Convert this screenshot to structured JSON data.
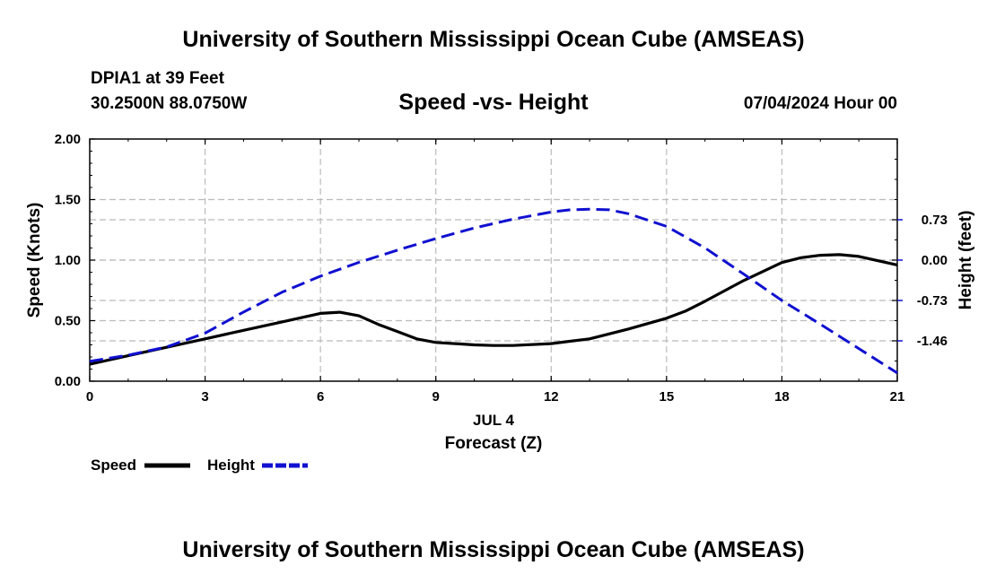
{
  "header": {
    "title": "University of Southern Mississippi Ocean Cube (AMSEAS)",
    "station": "DPIA1 at 39 Feet",
    "coords": "30.2500N  88.0750W",
    "run_time": "07/04/2024 Hour 00"
  },
  "footer": {
    "title": "University of Southern Mississippi Ocean Cube (AMSEAS)"
  },
  "chart_data": {
    "type": "line",
    "title": "Speed -vs- Height",
    "xlabel": "Forecast (Z)",
    "date_label": "JUL 4",
    "ylabel": "Speed (Knots)",
    "y2label": "Height (feet)",
    "xlim": [
      0,
      21
    ],
    "ylim": [
      0,
      2
    ],
    "y2lim": [
      -2.19,
      2.19
    ],
    "x_ticks": [
      "0",
      "3",
      "6",
      "9",
      "12",
      "15",
      "18",
      "21"
    ],
    "y_ticks": [
      "0.00",
      "0.50",
      "1.00",
      "1.50",
      "2.00"
    ],
    "y2_ticks": [
      "-1.46",
      "-0.73",
      "0.00",
      "0.73"
    ],
    "grid": true,
    "legend": [
      {
        "name": "Speed",
        "color": "#000000",
        "style": "solid"
      },
      {
        "name": "Height",
        "color": "#1010d0",
        "style": "dashed"
      }
    ],
    "series": [
      {
        "name": "Speed",
        "axis": "left",
        "color": "#000000",
        "x": [
          0,
          1,
          2,
          3,
          4,
          5,
          6,
          6.5,
          7,
          7.5,
          8,
          8.5,
          9,
          9.5,
          10,
          10.5,
          11,
          12,
          13,
          14,
          15,
          15.5,
          16,
          17,
          18,
          18.5,
          19,
          19.5,
          20,
          21
        ],
        "values": [
          0.14,
          0.21,
          0.28,
          0.35,
          0.42,
          0.49,
          0.56,
          0.57,
          0.54,
          0.47,
          0.41,
          0.35,
          0.32,
          0.31,
          0.3,
          0.295,
          0.295,
          0.31,
          0.35,
          0.43,
          0.52,
          0.58,
          0.66,
          0.83,
          0.98,
          1.02,
          1.04,
          1.045,
          1.03,
          0.96
        ]
      },
      {
        "name": "Height",
        "axis": "right",
        "color": "#1010d0",
        "x": [
          0,
          1,
          2,
          3,
          4,
          5,
          6,
          7,
          8,
          9,
          10,
          11,
          12,
          12.5,
          13,
          13.5,
          14,
          15,
          16,
          17,
          18,
          19,
          20,
          21
        ],
        "values": [
          -1.83,
          -1.72,
          -1.57,
          -1.32,
          -0.94,
          -0.58,
          -0.29,
          -0.04,
          0.18,
          0.39,
          0.58,
          0.74,
          0.87,
          0.91,
          0.92,
          0.91,
          0.84,
          0.61,
          0.22,
          -0.25,
          -0.73,
          -1.16,
          -1.6,
          -2.04
        ]
      }
    ]
  }
}
